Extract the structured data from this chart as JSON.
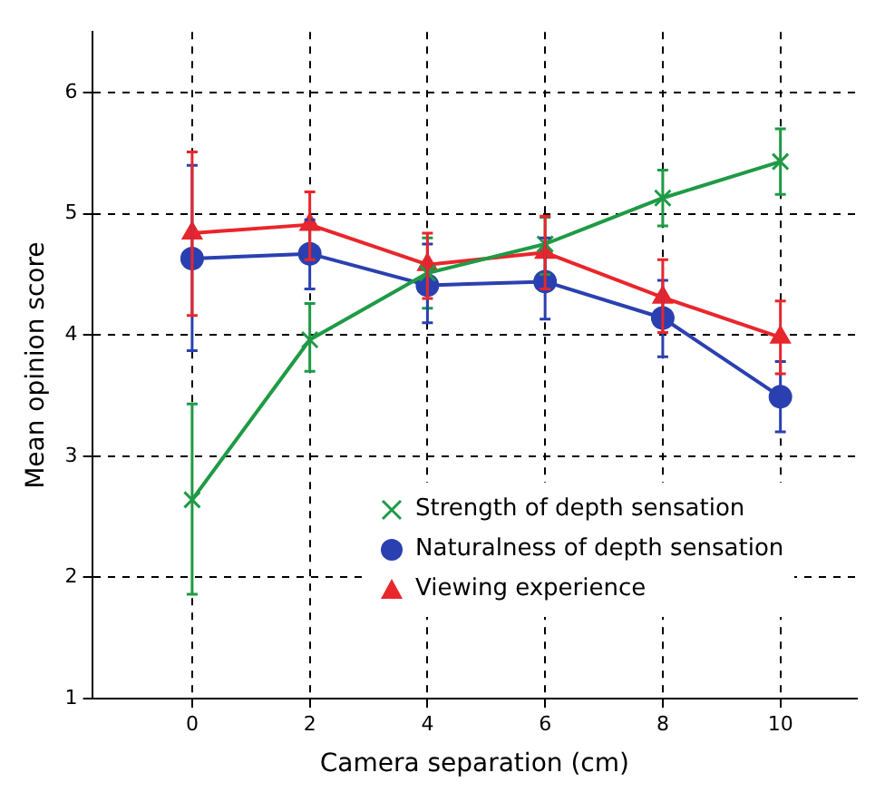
{
  "chart_data": {
    "type": "line",
    "xlabel": "Camera separation (cm)",
    "ylabel": "Mean opinion score",
    "x": [
      0,
      2,
      4,
      6,
      8,
      10
    ],
    "xlim": [
      -1.7,
      11.3
    ],
    "xticks": [
      0,
      2,
      4,
      6,
      8,
      10
    ],
    "ylim": [
      1,
      6.5
    ],
    "yticks": [
      1,
      2,
      3,
      4,
      5,
      6
    ],
    "grid": true,
    "legend": "bottom",
    "line_style": "solid",
    "series": [
      {
        "name": "Strength of depth sensation",
        "color": "#1f9a45",
        "marker": "cross",
        "values": [
          2.64,
          3.96,
          4.51,
          4.75,
          5.13,
          5.43
        ],
        "errors": [
          [
            1.86,
            3.43
          ],
          [
            3.7,
            4.26
          ],
          [
            4.22,
            4.8
          ],
          [
            4.5,
            4.97
          ],
          [
            4.9,
            5.36
          ],
          [
            5.16,
            5.7
          ]
        ]
      },
      {
        "name": "Naturalness of depth sensation",
        "color": "#2b40b0",
        "marker": "circle",
        "values": [
          4.63,
          4.67,
          4.41,
          4.44,
          4.14,
          3.49
        ],
        "errors": [
          [
            3.87,
            5.4
          ],
          [
            4.38,
            4.95
          ],
          [
            4.1,
            4.75
          ],
          [
            4.13,
            4.8
          ],
          [
            3.82,
            4.45
          ],
          [
            3.2,
            3.78
          ]
        ]
      },
      {
        "name": "Viewing experience",
        "color": "#e8262c",
        "marker": "triangle",
        "values": [
          4.84,
          4.91,
          4.58,
          4.68,
          4.31,
          3.98
        ],
        "errors": [
          [
            4.16,
            5.51
          ],
          [
            4.62,
            5.18
          ],
          [
            4.3,
            4.84
          ],
          [
            4.38,
            4.98
          ],
          [
            4.02,
            4.62
          ],
          [
            3.68,
            4.28
          ]
        ]
      }
    ]
  }
}
